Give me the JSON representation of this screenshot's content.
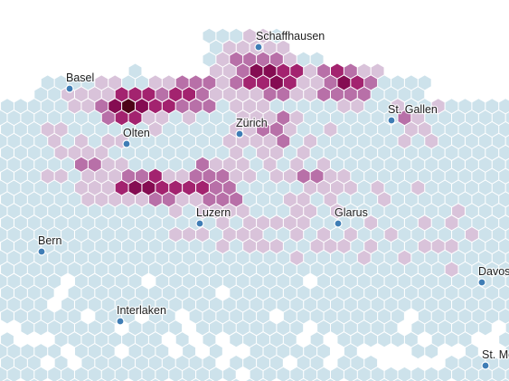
{
  "map": {
    "palette": {
      "land": "#cde2eb",
      "low": "#d9c3da",
      "mid": "#b870a8",
      "high": "#a3236f",
      "very_high": "#850c52",
      "max": "#4e0418",
      "city_marker": "#3f7db5",
      "background": "#ffffff"
    },
    "cities": [
      {
        "name": "Schaffhausen"
      },
      {
        "name": "Basel"
      },
      {
        "name": "St. Gallen"
      },
      {
        "name": "Zürich"
      },
      {
        "name": "Olten"
      },
      {
        "name": "Luzern"
      },
      {
        "name": "Glarus"
      },
      {
        "name": "Bern"
      },
      {
        "name": "Davos"
      },
      {
        "name": "Interlaken"
      },
      {
        "name": "St. Mo"
      }
    ]
  }
}
